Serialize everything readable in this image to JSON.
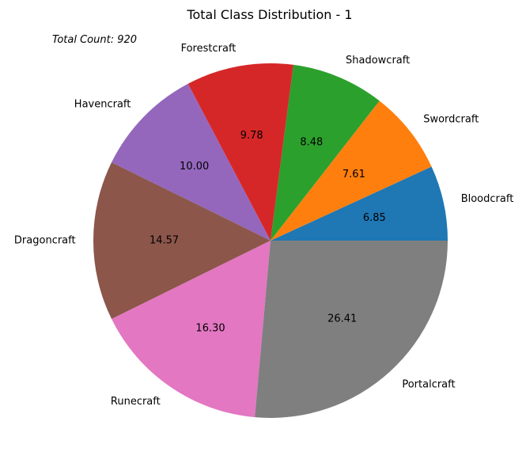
{
  "chart_data": {
    "type": "pie",
    "title": "Total Class Distribution - 1",
    "annotation": "Total Count: 920",
    "categories": [
      "Bloodcraft",
      "Swordcraft",
      "Shadowcraft",
      "Forestcraft",
      "Havencraft",
      "Dragoncraft",
      "Runecraft",
      "Portalcraft"
    ],
    "values": [
      6.85,
      7.61,
      8.48,
      9.78,
      10.0,
      14.57,
      16.3,
      26.41
    ],
    "value_labels": [
      "6.85",
      "7.61",
      "8.48",
      "9.78",
      "10.00",
      "14.57",
      "16.30",
      "26.41"
    ],
    "colors": [
      "#1f77b4",
      "#ff7f0e",
      "#2ca02c",
      "#d62728",
      "#9467bd",
      "#8c564b",
      "#e377c2",
      "#7f7f7f"
    ],
    "start_angle": 0,
    "direction": "counterclockwise",
    "legend": "none"
  }
}
